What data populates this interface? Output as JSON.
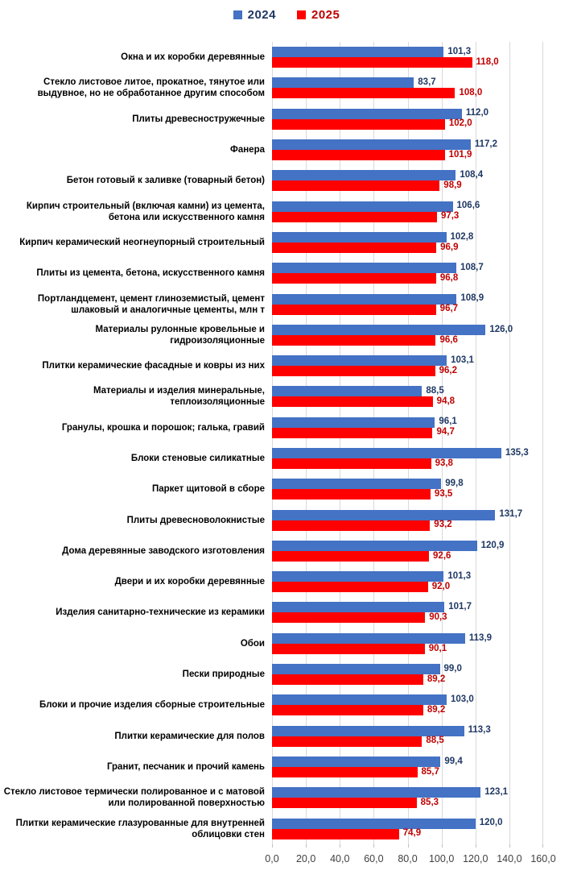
{
  "legend": [
    {
      "label": "2024",
      "marker_color": "#4472C4",
      "text_color": "#1F3864"
    },
    {
      "label": "2025",
      "marker_color": "#FF0000",
      "text_color": "#C00000"
    }
  ],
  "colors": {
    "bar_2024": "#4472C4",
    "bar_2025": "#FF0000",
    "value_label_2024": "#1F3864",
    "value_label_2025": "#C00000",
    "gridline": "#D9D9D9",
    "axis_text": "#404040"
  },
  "chart_data": {
    "type": "bar",
    "orientation": "horizontal",
    "title": "",
    "xlabel": "",
    "ylabel": "",
    "xlim": [
      0,
      160
    ],
    "x_tick_step": 20,
    "x_tick_labels": [
      "0,0",
      "20,0",
      "40,0",
      "60,0",
      "80,0",
      "100,0",
      "120,0",
      "140,0",
      "160,0"
    ],
    "grid": "vertical",
    "legend_position": "top",
    "value_label_format": "comma-decimal, one digit",
    "categories": [
      "Окна и их коробки деревянные",
      "Стекло листовое литое, прокатное, тянутое или выдувное, но не обработанное другим способом",
      "Плиты древесностружечные",
      "Фанера",
      "Бетон готовый к заливке (товарный бетон)",
      "Кирпич строительный (включая камни) из цемента, бетона или искусственного камня",
      "Кирпич керамический неогнеупорный строительный",
      "Плиты из цемента, бетона, искусственного камня",
      "Портландцемент, цемент глиноземистый, цемент шлаковый и аналогичные цементы, млн т",
      "Материалы рулонные кровельные и гидроизоляционные",
      "Плитки керамические фасадные и ковры из них",
      "Материалы и изделия минеральные, теплоизоляционные",
      "Гранулы, крошка и порошок; галька, гравий",
      "Блоки стеновые силикатные",
      "Паркет щитовой в сборе",
      "Плиты древесноволокнистые",
      "Дома деревянные заводского изготовления",
      "Двери и их коробки деревянные",
      "Изделия санитарно-технические из керамики",
      "Обои",
      "Пески природные",
      "Блоки и прочие изделия сборные строительные",
      "Плитки керамические для полов",
      "Гранит, песчаник и прочий камень",
      "Стекло листовое термически полированное и с матовой или полированной поверхностью",
      "Плитки керамические глазурованные для внутренней облицовки стен"
    ],
    "series": [
      {
        "name": "2024",
        "color": "#4472C4",
        "values": [
          101.3,
          83.7,
          112.0,
          117.2,
          108.4,
          106.6,
          102.8,
          108.7,
          108.9,
          126.0,
          103.1,
          88.5,
          96.1,
          135.3,
          99.8,
          131.7,
          120.9,
          101.3,
          101.7,
          113.9,
          99.0,
          103.0,
          113.3,
          99.4,
          123.1,
          120.0
        ]
      },
      {
        "name": "2025",
        "color": "#FF0000",
        "values": [
          118.0,
          108.0,
          102.0,
          101.9,
          98.9,
          97.3,
          96.9,
          96.8,
          96.7,
          96.6,
          96.2,
          94.8,
          94.7,
          93.8,
          93.5,
          93.2,
          92.6,
          92.0,
          90.3,
          90.1,
          89.2,
          89.2,
          88.5,
          85.7,
          85.3,
          74.9
        ]
      }
    ]
  }
}
